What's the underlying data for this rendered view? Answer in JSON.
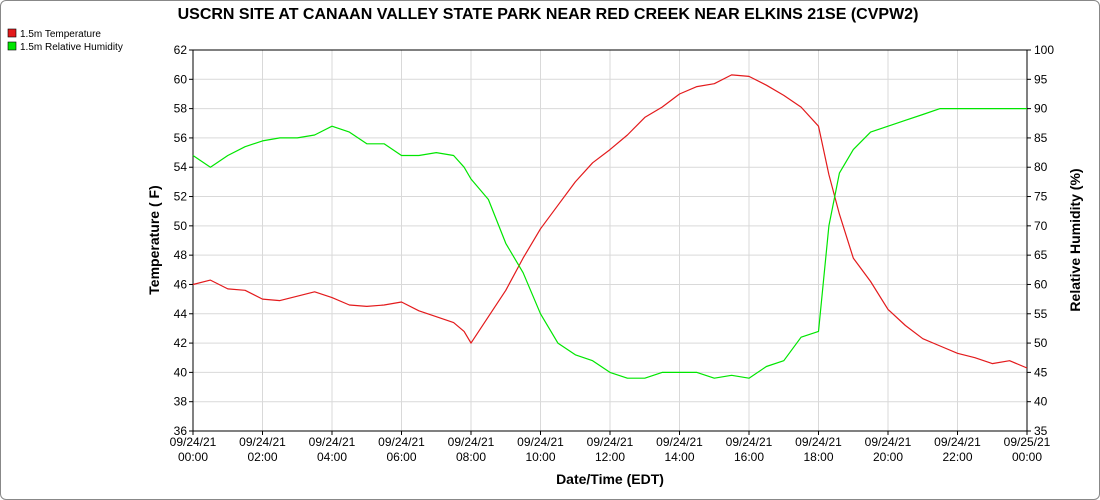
{
  "chart_data": {
    "type": "line",
    "title": "USCRN SITE AT CANAAN VALLEY STATE PARK NEAR RED CREEK NEAR ELKINS 21SE (CVPW2)",
    "xlabel": "Date/Time (EDT)",
    "ylabel": "Temperature ( F)",
    "y2label": "Relative Humidity (%)",
    "ylim": [
      36,
      62
    ],
    "y2lim": [
      35,
      100
    ],
    "y_ticks": [
      "36",
      "38",
      "40",
      "42",
      "44",
      "46",
      "48",
      "50",
      "52",
      "54",
      "56",
      "58",
      "60",
      "62"
    ],
    "y2_ticks": [
      "35",
      "40",
      "45",
      "50",
      "55",
      "60",
      "65",
      "70",
      "75",
      "80",
      "85",
      "90",
      "95",
      "100"
    ],
    "x_ticks": [
      {
        "date": "09/24/21",
        "time": "00:00"
      },
      {
        "date": "09/24/21",
        "time": "02:00"
      },
      {
        "date": "09/24/21",
        "time": "04:00"
      },
      {
        "date": "09/24/21",
        "time": "06:00"
      },
      {
        "date": "09/24/21",
        "time": "08:00"
      },
      {
        "date": "09/24/21",
        "time": "10:00"
      },
      {
        "date": "09/24/21",
        "time": "12:00"
      },
      {
        "date": "09/24/21",
        "time": "14:00"
      },
      {
        "date": "09/24/21",
        "time": "16:00"
      },
      {
        "date": "09/24/21",
        "time": "18:00"
      },
      {
        "date": "09/24/21",
        "time": "20:00"
      },
      {
        "date": "09/24/21",
        "time": "22:00"
      },
      {
        "date": "09/25/21",
        "time": "00:00"
      }
    ],
    "x_hours": [
      0,
      0.5,
      1,
      1.5,
      2,
      2.5,
      3,
      3.5,
      4,
      4.5,
      5,
      5.5,
      6,
      6.5,
      7,
      7.5,
      7.8,
      8,
      8.5,
      9,
      9.5,
      10,
      10.5,
      11,
      11.5,
      12,
      12.5,
      13,
      13.5,
      14,
      14.5,
      15,
      15.5,
      16,
      16.5,
      17,
      17.5,
      18,
      18.3,
      18.6,
      19,
      19.5,
      20,
      20.5,
      21,
      21.5,
      22,
      22.5,
      23,
      23.5,
      24
    ],
    "grid": true,
    "legend_position": "top-left",
    "series": [
      {
        "name": "1.5m Temperature",
        "axis": "left",
        "color": "#e31a1c",
        "values": [
          46.0,
          46.3,
          45.7,
          45.6,
          45.0,
          44.9,
          45.2,
          45.5,
          45.1,
          44.6,
          44.5,
          44.6,
          44.8,
          44.2,
          43.8,
          43.4,
          42.8,
          42.0,
          43.8,
          45.6,
          47.8,
          49.8,
          51.4,
          53.0,
          54.3,
          55.2,
          56.2,
          57.4,
          58.1,
          59.0,
          59.5,
          59.7,
          60.3,
          60.2,
          59.6,
          58.9,
          58.1,
          56.8,
          53.5,
          50.8,
          47.8,
          46.2,
          44.3,
          43.2,
          42.3,
          41.8,
          41.3,
          41.0,
          40.6,
          40.8,
          40.3
        ]
      },
      {
        "name": "1.5m Relative Humidity",
        "axis": "right",
        "color": "#00e600",
        "values": [
          82,
          80,
          82,
          83.5,
          84.5,
          85,
          85,
          85.5,
          87,
          86,
          84,
          84,
          82,
          82,
          82.5,
          82,
          80,
          78,
          74.5,
          67,
          62,
          55,
          50,
          48,
          47,
          45,
          44,
          44,
          45,
          45,
          45,
          44,
          44.5,
          44,
          46,
          47,
          51,
          52,
          70,
          79,
          83,
          86,
          87,
          88,
          89,
          90,
          90,
          90,
          90,
          90,
          90
        ]
      }
    ]
  }
}
